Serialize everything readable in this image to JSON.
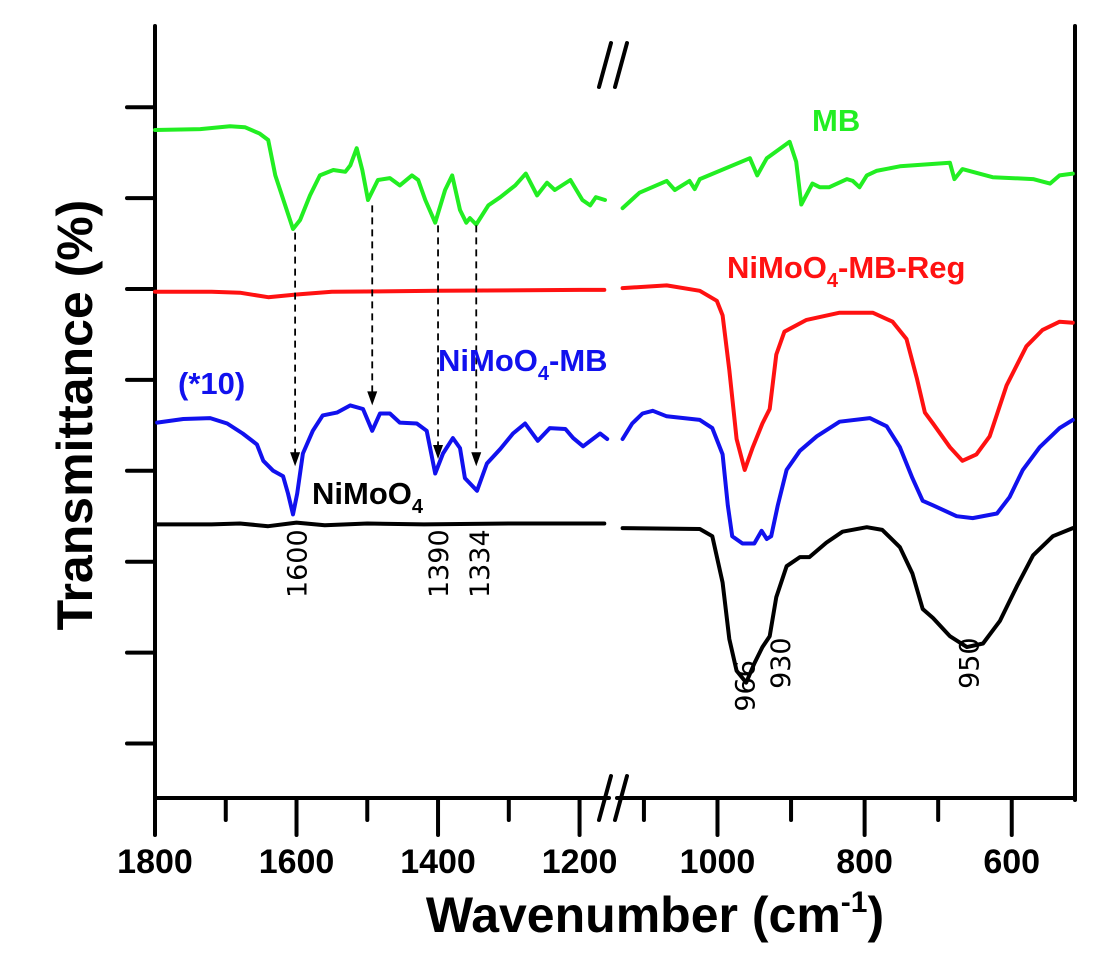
{
  "chart_data": {
    "type": "line",
    "title": "",
    "xlabel": "Wavenumber (cm",
    "xlabel_sup": "-1",
    "xlabel_end": ")",
    "ylabel": "Transmittance (%)",
    "x_segments": [
      [
        1800,
        1155
      ],
      [
        1140,
        514
      ]
    ],
    "x_axis_break": true,
    "xticks_major": [
      1800,
      1600,
      1400,
      1200,
      1000,
      800,
      600
    ],
    "xticks_minor": [
      1700,
      1500,
      1300,
      1100,
      900,
      700
    ],
    "xtick_labels": [
      "1800",
      "1600",
      "1400",
      "1200",
      "1000",
      "800",
      "600"
    ],
    "ylim": [
      0.4,
      8.85
    ],
    "yticks": [
      1,
      2,
      3,
      4,
      5,
      6,
      7,
      8
    ],
    "ytick_labels_shown": false,
    "grid": false,
    "series": [
      {
        "name": "MB",
        "color": "#22ee22",
        "label": {
          "main": "MB",
          "sub": "",
          "rest": ""
        },
        "left": [
          [
            1800,
            7.75
          ],
          [
            1736,
            7.76
          ],
          [
            1694,
            7.79
          ],
          [
            1673,
            7.78
          ],
          [
            1652,
            7.71
          ],
          [
            1640,
            7.64
          ],
          [
            1630,
            7.25
          ],
          [
            1616,
            6.92
          ],
          [
            1605,
            6.66
          ],
          [
            1595,
            6.76
          ],
          [
            1581,
            7.03
          ],
          [
            1567,
            7.25
          ],
          [
            1548,
            7.31
          ],
          [
            1531,
            7.29
          ],
          [
            1524,
            7.36
          ],
          [
            1515,
            7.55
          ],
          [
            1507,
            7.31
          ],
          [
            1499,
            6.98
          ],
          [
            1485,
            7.2
          ],
          [
            1468,
            7.22
          ],
          [
            1454,
            7.14
          ],
          [
            1437,
            7.25
          ],
          [
            1428,
            7.2
          ],
          [
            1418,
            6.98
          ],
          [
            1404,
            6.73
          ],
          [
            1390,
            7.09
          ],
          [
            1380,
            7.25
          ],
          [
            1369,
            6.87
          ],
          [
            1360,
            6.73
          ],
          [
            1355,
            6.78
          ],
          [
            1346,
            6.71
          ],
          [
            1329,
            6.92
          ],
          [
            1312,
            7.01
          ],
          [
            1291,
            7.14
          ],
          [
            1276,
            7.27
          ],
          [
            1260,
            7.03
          ],
          [
            1246,
            7.17
          ],
          [
            1235,
            7.09
          ],
          [
            1213,
            7.2
          ],
          [
            1196,
            6.98
          ],
          [
            1185,
            6.92
          ],
          [
            1177,
            7.01
          ],
          [
            1164,
            6.98
          ]
        ],
        "right": [
          [
            1129,
            6.89
          ],
          [
            1106,
            7.06
          ],
          [
            1069,
            7.19
          ],
          [
            1058,
            7.09
          ],
          [
            1038,
            7.19
          ],
          [
            1031,
            7.1
          ],
          [
            1024,
            7.21
          ],
          [
            956,
            7.44
          ],
          [
            946,
            7.25
          ],
          [
            933,
            7.44
          ],
          [
            902,
            7.62
          ],
          [
            893,
            7.4
          ],
          [
            886,
            6.93
          ],
          [
            871,
            7.16
          ],
          [
            861,
            7.12
          ],
          [
            848,
            7.12
          ],
          [
            824,
            7.21
          ],
          [
            816,
            7.19
          ],
          [
            807,
            7.12
          ],
          [
            797,
            7.25
          ],
          [
            784,
            7.3
          ],
          [
            752,
            7.35
          ],
          [
            684,
            7.39
          ],
          [
            678,
            7.21
          ],
          [
            667,
            7.32
          ],
          [
            626,
            7.23
          ],
          [
            571,
            7.21
          ],
          [
            548,
            7.16
          ],
          [
            535,
            7.25
          ],
          [
            517,
            7.27
          ]
        ]
      },
      {
        "name": "NiMoO4-MB-Reg",
        "color": "#ff1111",
        "label": {
          "main": "NiMoO",
          "sub": "4",
          "rest": "-MB-Reg"
        },
        "left": [
          [
            1800,
            5.97
          ],
          [
            1720,
            5.97
          ],
          [
            1680,
            5.96
          ],
          [
            1640,
            5.91
          ],
          [
            1600,
            5.94
          ],
          [
            1550,
            5.97
          ],
          [
            1400,
            5.98
          ],
          [
            1200,
            5.99
          ],
          [
            1165,
            5.99
          ]
        ],
        "right": [
          [
            1129,
            6.01
          ],
          [
            1069,
            6.04
          ],
          [
            1024,
            5.98
          ],
          [
            1001,
            5.87
          ],
          [
            993,
            5.71
          ],
          [
            984,
            5.11
          ],
          [
            974,
            4.35
          ],
          [
            963,
            4.01
          ],
          [
            952,
            4.26
          ],
          [
            939,
            4.52
          ],
          [
            929,
            4.68
          ],
          [
            920,
            5.28
          ],
          [
            909,
            5.53
          ],
          [
            879,
            5.66
          ],
          [
            834,
            5.74
          ],
          [
            789,
            5.74
          ],
          [
            762,
            5.64
          ],
          [
            743,
            5.45
          ],
          [
            729,
            5.02
          ],
          [
            718,
            4.64
          ],
          [
            707,
            4.52
          ],
          [
            684,
            4.26
          ],
          [
            667,
            4.11
          ],
          [
            648,
            4.18
          ],
          [
            630,
            4.38
          ],
          [
            607,
            4.94
          ],
          [
            580,
            5.37
          ],
          [
            558,
            5.55
          ],
          [
            535,
            5.64
          ],
          [
            517,
            5.63
          ]
        ]
      },
      {
        "name": "NiMoO4-MB",
        "color": "#1111ee",
        "label": {
          "main": "NiMoO",
          "sub": "4",
          "rest": "-MB"
        },
        "scale_note": "(*10)",
        "left": [
          [
            1797,
            4.53
          ],
          [
            1760,
            4.57
          ],
          [
            1722,
            4.58
          ],
          [
            1698,
            4.52
          ],
          [
            1676,
            4.41
          ],
          [
            1656,
            4.29
          ],
          [
            1647,
            4.11
          ],
          [
            1633,
            4.0
          ],
          [
            1619,
            3.94
          ],
          [
            1612,
            3.75
          ],
          [
            1605,
            3.52
          ],
          [
            1599,
            3.75
          ],
          [
            1591,
            4.19
          ],
          [
            1577,
            4.44
          ],
          [
            1563,
            4.61
          ],
          [
            1543,
            4.64
          ],
          [
            1524,
            4.72
          ],
          [
            1506,
            4.68
          ],
          [
            1493,
            4.44
          ],
          [
            1482,
            4.63
          ],
          [
            1468,
            4.63
          ],
          [
            1454,
            4.53
          ],
          [
            1430,
            4.52
          ],
          [
            1416,
            4.44
          ],
          [
            1404,
            3.97
          ],
          [
            1393,
            4.19
          ],
          [
            1379,
            4.36
          ],
          [
            1369,
            4.25
          ],
          [
            1362,
            3.92
          ],
          [
            1345,
            3.78
          ],
          [
            1331,
            4.08
          ],
          [
            1312,
            4.24
          ],
          [
            1294,
            4.41
          ],
          [
            1277,
            4.52
          ],
          [
            1259,
            4.33
          ],
          [
            1242,
            4.47
          ],
          [
            1220,
            4.46
          ],
          [
            1209,
            4.36
          ],
          [
            1195,
            4.27
          ],
          [
            1171,
            4.41
          ],
          [
            1161,
            4.35
          ]
        ],
        "right": [
          [
            1129,
            4.35
          ],
          [
            1116,
            4.52
          ],
          [
            1102,
            4.63
          ],
          [
            1088,
            4.66
          ],
          [
            1069,
            4.6
          ],
          [
            1024,
            4.56
          ],
          [
            1007,
            4.47
          ],
          [
            993,
            4.18
          ],
          [
            986,
            3.62
          ],
          [
            980,
            3.28
          ],
          [
            966,
            3.2
          ],
          [
            950,
            3.2
          ],
          [
            940,
            3.34
          ],
          [
            933,
            3.25
          ],
          [
            927,
            3.28
          ],
          [
            918,
            3.62
          ],
          [
            906,
            4.01
          ],
          [
            888,
            4.22
          ],
          [
            865,
            4.38
          ],
          [
            834,
            4.54
          ],
          [
            793,
            4.58
          ],
          [
            770,
            4.49
          ],
          [
            752,
            4.26
          ],
          [
            735,
            3.92
          ],
          [
            721,
            3.67
          ],
          [
            707,
            3.62
          ],
          [
            675,
            3.5
          ],
          [
            653,
            3.48
          ],
          [
            620,
            3.53
          ],
          [
            603,
            3.71
          ],
          [
            585,
            4.01
          ],
          [
            562,
            4.26
          ],
          [
            535,
            4.47
          ],
          [
            517,
            4.56
          ]
        ]
      },
      {
        "name": "NiMoO4",
        "color": "#000000",
        "label": {
          "main": "NiMoO",
          "sub": "4",
          "rest": ""
        },
        "left": [
          [
            1800,
            3.41
          ],
          [
            1720,
            3.41
          ],
          [
            1680,
            3.42
          ],
          [
            1640,
            3.39
          ],
          [
            1600,
            3.43
          ],
          [
            1560,
            3.4
          ],
          [
            1500,
            3.42
          ],
          [
            1420,
            3.41
          ],
          [
            1300,
            3.42
          ],
          [
            1165,
            3.42
          ]
        ],
        "right": [
          [
            1129,
            3.37
          ],
          [
            1024,
            3.36
          ],
          [
            1007,
            3.28
          ],
          [
            993,
            2.77
          ],
          [
            984,
            2.15
          ],
          [
            974,
            1.8
          ],
          [
            961,
            1.67
          ],
          [
            950,
            1.88
          ],
          [
            939,
            2.06
          ],
          [
            929,
            2.18
          ],
          [
            920,
            2.61
          ],
          [
            906,
            2.95
          ],
          [
            888,
            3.05
          ],
          [
            875,
            3.05
          ],
          [
            852,
            3.21
          ],
          [
            830,
            3.33
          ],
          [
            797,
            3.38
          ],
          [
            776,
            3.35
          ],
          [
            752,
            3.16
          ],
          [
            735,
            2.87
          ],
          [
            721,
            2.48
          ],
          [
            707,
            2.38
          ],
          [
            684,
            2.18
          ],
          [
            661,
            2.06
          ],
          [
            639,
            2.1
          ],
          [
            616,
            2.35
          ],
          [
            593,
            2.73
          ],
          [
            571,
            3.07
          ],
          [
            544,
            3.28
          ],
          [
            517,
            3.37
          ]
        ]
      }
    ],
    "arrows": [
      {
        "x": 1602,
        "from": 6.62,
        "to": 4.05
      },
      {
        "x": 1493,
        "from": 6.92,
        "to": 4.72
      },
      {
        "x": 1400,
        "from": 6.7,
        "to": 4.13
      },
      {
        "x": 1346,
        "from": 6.7,
        "to": 4.05
      }
    ],
    "peak_labels": [
      {
        "text": "1600",
        "x": 1600,
        "y": 2.6
      },
      {
        "text": "1390",
        "x": 1400,
        "y": 2.6
      },
      {
        "text": "1334",
        "x": 1342,
        "y": 2.6
      },
      {
        "text": "966",
        "x": 963,
        "y": 1.35
      },
      {
        "text": "930",
        "x": 915,
        "y": 1.6
      },
      {
        "text": "950",
        "x": 659,
        "y": 1.6
      }
    ]
  }
}
